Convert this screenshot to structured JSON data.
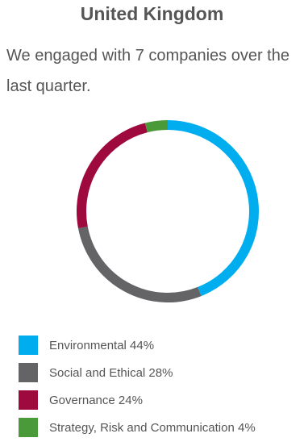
{
  "header": {
    "title": "United Kingdom",
    "subtitle": "We engaged with 7 companies over the last quarter."
  },
  "chart_data": {
    "type": "pie",
    "style": "donut",
    "start_angle": "top, clockwise",
    "categories": [
      "Environmental",
      "Social and Ethical",
      "Governance",
      "Strategy, Risk and Communication"
    ],
    "values": [
      44,
      28,
      24,
      4
    ],
    "unit": "%",
    "colors": [
      "#00aeef",
      "#646467",
      "#9e0a3e",
      "#4a9a3a"
    ],
    "legend_labels": [
      "Environmental 44%",
      "Social and Ethical 28%",
      "Governance 24%",
      "Strategy, Risk and Communication 4%"
    ],
    "legend_position": "bottom-left"
  }
}
